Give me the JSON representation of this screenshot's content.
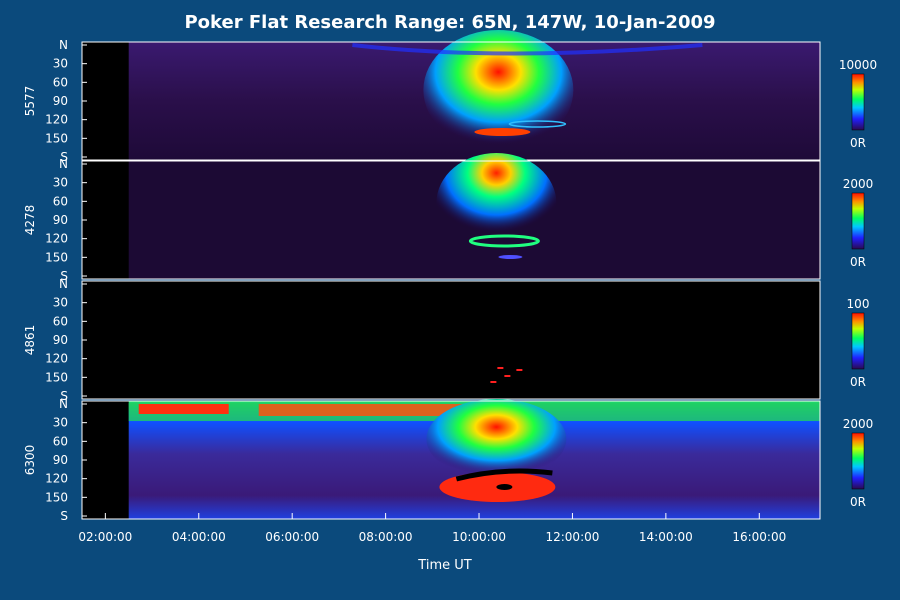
{
  "colors": {
    "page_background": "#0b4a7c",
    "panel_border": "#ffffff",
    "text": "#ffffff",
    "emission_colormap": [
      "#1a0a3a",
      "#3a1060",
      "#5020a0",
      "#2030ff",
      "#00b0ff",
      "#00ff80",
      "#80ff00",
      "#ffff00",
      "#ff8000",
      "#ff1000"
    ]
  },
  "chart_data": {
    "type": "heatmap",
    "title": "Poker Flat Research Range: 65N, 147W, 10-Jan-2009",
    "xlabel": "Time UT",
    "x_ticks": [
      "02:00:00",
      "04:00:00",
      "06:00:00",
      "08:00:00",
      "10:00:00",
      "12:00:00",
      "14:00:00",
      "16:00:00"
    ],
    "x_tick_hours": [
      2,
      4,
      6,
      8,
      10,
      12,
      14,
      16
    ],
    "xlim_hours": [
      1.5,
      17.3
    ],
    "data_start_hour": 2.5,
    "y_ticks": [
      "N",
      "30",
      "60",
      "90",
      "120",
      "150",
      "S"
    ],
    "y_tick_values": [
      0,
      30,
      60,
      90,
      120,
      150,
      180
    ],
    "ylim": [
      0,
      180
    ],
    "panels": [
      {
        "channel": "5577",
        "colorbar_max": "10000",
        "colorbar_min": "0R"
      },
      {
        "channel": "4278",
        "colorbar_max": "2000",
        "colorbar_min": "0R"
      },
      {
        "channel": "4861",
        "colorbar_max": "100",
        "colorbar_min": "0R"
      },
      {
        "channel": "6300",
        "colorbar_max": "2000",
        "colorbar_min": "0R"
      }
    ]
  }
}
